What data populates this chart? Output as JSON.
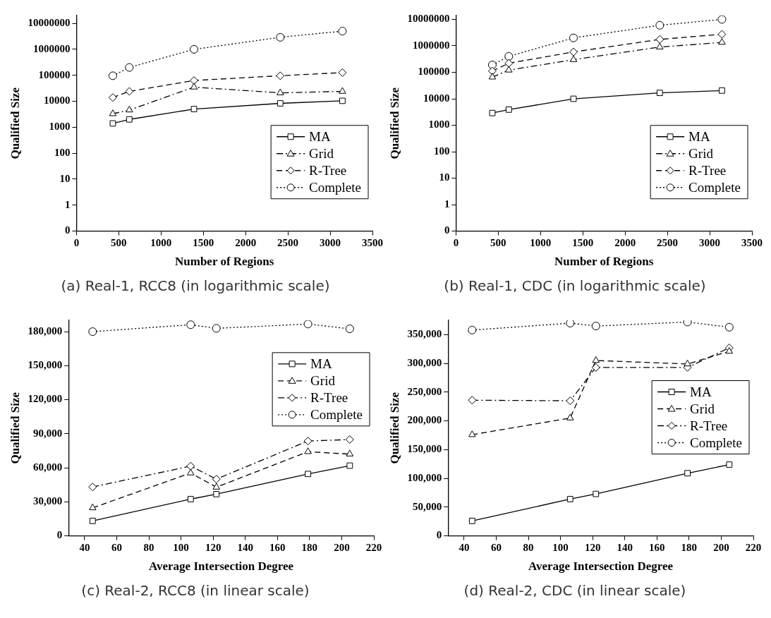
{
  "chart_data": [
    {
      "type": "line",
      "title": "(a) Real-1, RCC8 (in logarithmic scale)",
      "xlabel": "Number of Regions",
      "ylabel": "Qualified Size",
      "log": "y",
      "xlim": [
        0,
        3500
      ],
      "xticks": [
        0,
        500,
        1000,
        1500,
        2000,
        2500,
        3000,
        3500
      ],
      "ylim": [
        0.1,
        20000000
      ],
      "yticks": [
        {
          "value": 0.1,
          "label": "0"
        },
        1,
        10,
        100,
        1000,
        10000,
        100000,
        1000000,
        10000000
      ],
      "legend": "bottom right",
      "x": [
        430,
        625,
        1390,
        2410,
        3145
      ],
      "series": [
        {
          "name": "MA",
          "color": "#000000",
          "marker": "square",
          "line_style": "solid",
          "values": [
            1400,
            2000,
            5000,
            8300,
            10400
          ]
        },
        {
          "name": "Grid",
          "color": "#000000",
          "marker": "triangle",
          "line_style": "dashdot",
          "values": [
            3300,
            4600,
            35000,
            21000,
            24000
          ]
        },
        {
          "name": "R-Tree",
          "color": "#000000",
          "marker": "diamond",
          "line_style": "dashed",
          "values": [
            14000,
            24000,
            63000,
            96000,
            127000
          ]
        },
        {
          "name": "Complete",
          "color": "#000000",
          "marker": "circle",
          "line_style": "dotted",
          "values": [
            96000,
            200000,
            1000000,
            2900000,
            5000000
          ]
        }
      ]
    },
    {
      "type": "line",
      "title": "(b) Real-1, CDC (in logarithmic scale)",
      "xlabel": "Number of Regions",
      "ylabel": "Qualified Size",
      "log": "y",
      "xlim": [
        0,
        3500
      ],
      "xticks": [
        0,
        500,
        1000,
        1500,
        2000,
        2500,
        3000,
        3500
      ],
      "ylim": [
        0.1,
        14000000
      ],
      "yticks": [
        {
          "value": 0.1,
          "label": "0"
        },
        1,
        10,
        100,
        1000,
        10000,
        100000,
        1000000,
        10000000
      ],
      "legend": "bottom right",
      "x": [
        430,
        625,
        1390,
        2410,
        3145
      ],
      "series": [
        {
          "name": "MA",
          "color": "#000000",
          "marker": "square",
          "line_style": "solid",
          "values": [
            2900,
            3900,
            10000,
            16700,
            20500
          ]
        },
        {
          "name": "Grid",
          "color": "#000000",
          "marker": "triangle",
          "line_style": "dashdot",
          "values": [
            66000,
            121000,
            300000,
            900000,
            1350000
          ]
        },
        {
          "name": "R-Tree",
          "color": "#000000",
          "marker": "diamond",
          "line_style": "dashed",
          "values": [
            112000,
            220000,
            590000,
            1750000,
            2750000
          ]
        },
        {
          "name": "Complete",
          "color": "#000000",
          "marker": "circle",
          "line_style": "dotted",
          "values": [
            190000,
            400000,
            2000000,
            6000000,
            10000000
          ]
        }
      ]
    },
    {
      "type": "line",
      "title": "(c) Real-2, RCC8 (in linear scale)",
      "xlabel": "Average Intersection Degree",
      "ylabel": "Qualified Size",
      "xlim": [
        30,
        220
      ],
      "xticks": [
        40,
        60,
        80,
        100,
        120,
        140,
        160,
        180,
        200,
        220
      ],
      "ylim": [
        0,
        190000
      ],
      "yticks": [
        0,
        {
          "value": 30000,
          "label": "30,000"
        },
        {
          "value": 60000,
          "label": "60,000"
        },
        {
          "value": 90000,
          "label": "90,000"
        },
        {
          "value": 120000,
          "label": "120,000"
        },
        {
          "value": 150000,
          "label": "150,000"
        },
        {
          "value": 180000,
          "label": "180,000"
        }
      ],
      "legend": "top right",
      "x": [
        45,
        106,
        122,
        179,
        205
      ],
      "series": [
        {
          "name": "MA",
          "color": "#000000",
          "marker": "square",
          "line_style": "solid",
          "values": [
            13200,
            32400,
            36800,
            54600,
            61900
          ]
        },
        {
          "name": "Grid",
          "color": "#000000",
          "marker": "triangle",
          "line_style": "dashed",
          "values": [
            24700,
            55400,
            42900,
            74200,
            72100
          ]
        },
        {
          "name": "R-Tree",
          "color": "#000000",
          "marker": "diamond",
          "line_style": "dashdot",
          "values": [
            43100,
            61500,
            50000,
            83600,
            84900
          ]
        },
        {
          "name": "Complete",
          "color": "#000000",
          "marker": "circle",
          "line_style": "dotted",
          "values": [
            180000,
            186100,
            182900,
            186700,
            182500
          ]
        }
      ]
    },
    {
      "type": "line",
      "title": "(d) Real-2, CDC (in linear scale)",
      "xlabel": "Average Intersection Degree",
      "ylabel": "Qualified Size",
      "xlim": [
        30,
        220
      ],
      "xticks": [
        40,
        60,
        80,
        100,
        120,
        140,
        160,
        180,
        200,
        220
      ],
      "ylim": [
        0,
        375000
      ],
      "yticks": [
        0,
        {
          "value": 50000,
          "label": "50,000"
        },
        {
          "value": 100000,
          "label": "100,000"
        },
        {
          "value": 150000,
          "label": "150,000"
        },
        {
          "value": 200000,
          "label": "200,000"
        },
        {
          "value": 250000,
          "label": "250,000"
        },
        {
          "value": 300000,
          "label": "300,000"
        },
        {
          "value": 350000,
          "label": "350,000"
        }
      ],
      "legend": "right",
      "x": [
        45,
        106,
        122,
        179,
        205
      ],
      "series": [
        {
          "name": "MA",
          "color": "#000000",
          "marker": "square",
          "line_style": "solid",
          "values": [
            26000,
            64000,
            73000,
            109000,
            124000
          ]
        },
        {
          "name": "Grid",
          "color": "#000000",
          "marker": "triangle",
          "line_style": "dashed",
          "values": [
            176000,
            205000,
            305000,
            299000,
            321000
          ]
        },
        {
          "name": "R-Tree",
          "color": "#000000",
          "marker": "diamond",
          "line_style": "dashdot",
          "values": [
            236000,
            235000,
            293000,
            293000,
            327000
          ]
        },
        {
          "name": "Complete",
          "color": "#000000",
          "marker": "circle",
          "line_style": "dotted",
          "values": [
            358000,
            370000,
            365000,
            372000,
            363000
          ]
        }
      ]
    }
  ]
}
